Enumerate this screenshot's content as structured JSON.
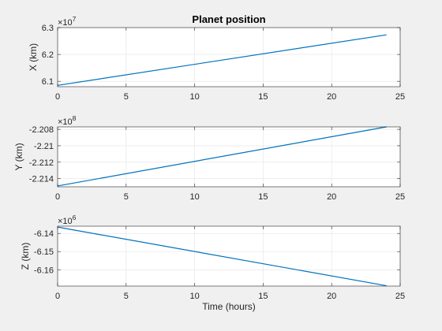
{
  "figure": {
    "background": "#f0f0f0",
    "axes_background": "#ffffff",
    "line_color": "#0072bd",
    "grid_color": "#e3e3e3",
    "axis_color": "#262626"
  },
  "chart_data": [
    {
      "type": "line",
      "title": "Planet position",
      "xlabel": "",
      "ylabel": "X (km)",
      "exponent_base": "×10",
      "exponent": "7",
      "grid": true,
      "xlim": [
        0,
        25
      ],
      "ylim": [
        6.08,
        6.3
      ],
      "xticks": [
        0,
        5,
        10,
        15,
        20,
        25
      ],
      "xticklabels": [
        "0",
        "5",
        "10",
        "15",
        "20",
        "25"
      ],
      "yticks": [
        6.1,
        6.2,
        6.3
      ],
      "yticklabels": [
        "6.1",
        "6.2",
        "6.3"
      ],
      "series": [
        {
          "x": [
            0,
            24
          ],
          "y": [
            6.085,
            6.273
          ]
        }
      ]
    },
    {
      "type": "line",
      "title": "",
      "xlabel": "",
      "ylabel": "Y (km)",
      "exponent_base": "×10",
      "exponent": "8",
      "grid": true,
      "xlim": [
        0,
        25
      ],
      "ylim": [
        -2.215,
        -2.2077
      ],
      "xticks": [
        0,
        5,
        10,
        15,
        20,
        25
      ],
      "xticklabels": [
        "0",
        "5",
        "10",
        "15",
        "20",
        "25"
      ],
      "yticks": [
        -2.214,
        -2.212,
        -2.21,
        -2.208
      ],
      "yticklabels": [
        "-2.214",
        "-2.212",
        "-2.21",
        "-2.208"
      ],
      "series": [
        {
          "x": [
            0,
            24
          ],
          "y": [
            -2.2149,
            -2.2077
          ]
        }
      ]
    },
    {
      "type": "line",
      "title": "",
      "xlabel": "Time (hours)",
      "ylabel": "Z (km)",
      "exponent_base": "×10",
      "exponent": "6",
      "grid": true,
      "xlim": [
        0,
        25
      ],
      "ylim": [
        -6.169,
        -6.136
      ],
      "xticks": [
        0,
        5,
        10,
        15,
        20,
        25
      ],
      "xticklabels": [
        "0",
        "5",
        "10",
        "15",
        "20",
        "25"
      ],
      "yticks": [
        -6.16,
        -6.15,
        -6.14
      ],
      "yticklabels": [
        "-6.16",
        "-6.15",
        "-6.14"
      ],
      "series": [
        {
          "x": [
            0,
            24
          ],
          "y": [
            -6.1365,
            -6.1688
          ]
        }
      ]
    }
  ]
}
